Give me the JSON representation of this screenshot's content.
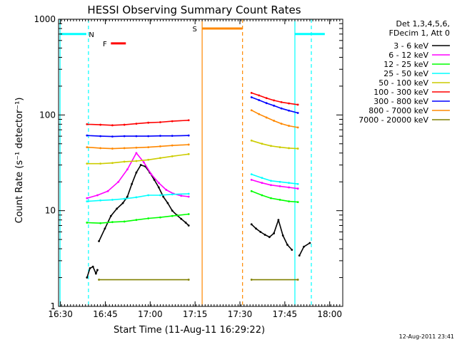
{
  "chart_data": {
    "type": "line",
    "title": "HESSI Observing Summary Count Rates",
    "xlabel": "Start Time (11-Aug-11 16:29:22)",
    "ylabel": "Count Rate (s⁻¹ detector⁻¹)",
    "x_unit": "minutes after 16:29:22",
    "xlim": [
      0,
      95
    ],
    "ylim": [
      1,
      1000
    ],
    "y_scale": "log",
    "grid": false,
    "legend_position": "right",
    "x_ticks": [
      {
        "t": 0.63,
        "label": "16:30"
      },
      {
        "t": 15.63,
        "label": "16:45"
      },
      {
        "t": 30.63,
        "label": "17:00"
      },
      {
        "t": 45.63,
        "label": "17:15"
      },
      {
        "t": 60.63,
        "label": "17:30"
      },
      {
        "t": 75.63,
        "label": "17:45"
      },
      {
        "t": 90.63,
        "label": "18:00"
      }
    ],
    "y_ticks": [
      {
        "v": 1,
        "label": "1"
      },
      {
        "v": 10,
        "label": "10"
      },
      {
        "v": 100,
        "label": "100"
      },
      {
        "v": 1000,
        "label": "1000"
      }
    ],
    "legend_header": [
      "Det 1,3,4,5,6,",
      "FDecim 1, Att 0"
    ],
    "footer_date": "12-Aug-2011 23:41",
    "series": [
      {
        "name": "3 - 6 keV",
        "color": "#000000",
        "segments": [
          {
            "x": [
              9.5,
              10.5,
              11.5,
              12.5,
              13.0
            ],
            "y": [
              2.0,
              2.5,
              2.6,
              2.2,
              2.4
            ]
          },
          {
            "x": [
              13.5,
              15.5,
              17.5,
              19.5,
              21.5,
              23.0,
              24.5,
              26.0,
              27.5,
              29.0,
              30.5,
              32.0,
              33.5,
              35.0,
              36.5,
              38.0,
              39.5,
              41.0,
              42.5,
              43.5
            ],
            "y": [
              4.8,
              6.5,
              8.8,
              10.5,
              12.0,
              14.0,
              19.0,
              25.0,
              30.0,
              29.0,
              25.0,
              21.0,
              17.5,
              14.0,
              12.0,
              10.0,
              9.0,
              8.2,
              7.5,
              7.0
            ]
          },
          {
            "x": [
              64.5,
              66.0,
              67.5,
              69.0,
              70.5,
              72.0,
              73.5,
              75.0,
              76.5,
              78.0
            ],
            "y": [
              7.2,
              6.5,
              6.0,
              5.6,
              5.3,
              5.8,
              8.0,
              5.5,
              4.4,
              3.9
            ]
          },
          {
            "x": [
              80.5,
              82.0,
              84.0
            ],
            "y": [
              3.4,
              4.2,
              4.6
            ]
          }
        ]
      },
      {
        "name": "6 - 12 keV",
        "color": "#ff00ff",
        "segments": [
          {
            "x": [
              9.5,
              13.0,
              16.5,
              20.0,
              23.0,
              26.0,
              28.5,
              31.0,
              33.5,
              36.0,
              38.5,
              41.0,
              43.5
            ],
            "y": [
              13.5,
              14.5,
              16.0,
              20.0,
              27.0,
              40.0,
              32.0,
              24.0,
              19.5,
              16.5,
              15.0,
              14.3,
              14.0
            ]
          },
          {
            "x": [
              64.5,
              68.0,
              71.0,
              74.0,
              77.0,
              80.0
            ],
            "y": [
              21.0,
              19.5,
              18.5,
              18.0,
              17.5,
              17.0
            ]
          }
        ]
      },
      {
        "name": "12 - 25 keV",
        "color": "#00ff00",
        "segments": [
          {
            "x": [
              9.5,
              14.0,
              18.0,
              22.0,
              26.0,
              30.0,
              34.0,
              38.0,
              43.5
            ],
            "y": [
              7.5,
              7.4,
              7.6,
              7.7,
              8.0,
              8.3,
              8.5,
              8.8,
              9.2
            ]
          },
          {
            "x": [
              64.5,
              68.0,
              71.0,
              74.0,
              77.0,
              80.0
            ],
            "y": [
              16.0,
              14.5,
              13.5,
              13.0,
              12.5,
              12.3
            ]
          }
        ]
      },
      {
        "name": "25 - 50 keV",
        "color": "#00ffff",
        "segments": [
          {
            "x": [
              9.5,
              14.0,
              18.0,
              22.0,
              26.0,
              30.0,
              34.0,
              38.0,
              43.5
            ],
            "y": [
              12.5,
              12.8,
              13.0,
              13.3,
              13.8,
              14.5,
              14.5,
              14.8,
              15.0
            ]
          },
          {
            "x": [
              64.5,
              68.0,
              71.0,
              74.0,
              77.0,
              80.0
            ],
            "y": [
              24.0,
              22.0,
              20.5,
              20.0,
              19.5,
              19.0
            ]
          }
        ]
      },
      {
        "name": "50 - 100 keV",
        "color": "#cccc00",
        "segments": [
          {
            "x": [
              9.5,
              14.0,
              18.0,
              22.0,
              26.0,
              30.0,
              34.0,
              38.0,
              43.5
            ],
            "y": [
              31.0,
              31.0,
              31.5,
              32.5,
              33.0,
              34.0,
              35.5,
              37.0,
              39.0
            ]
          },
          {
            "x": [
              64.5,
              68.0,
              71.0,
              74.0,
              77.0,
              80.0
            ],
            "y": [
              54.0,
              50.0,
              47.5,
              46.0,
              45.0,
              44.5
            ]
          }
        ]
      },
      {
        "name": "100 - 300 keV",
        "color": "#ff0000",
        "segments": [
          {
            "x": [
              9.5,
              14.0,
              18.0,
              22.0,
              26.0,
              30.0,
              34.0,
              38.0,
              43.5
            ],
            "y": [
              80.0,
              79.0,
              78.0,
              79.0,
              81.0,
              83.0,
              84.0,
              86.0,
              88.0
            ]
          },
          {
            "x": [
              64.5,
              67.0,
              69.5,
              72.0,
              74.5,
              77.0,
              80.0
            ],
            "y": [
              170.0,
              160.0,
              150.0,
              142.0,
              136.0,
              132.0,
              128.0
            ]
          }
        ]
      },
      {
        "name": "300 - 800 keV",
        "color": "#0000ff",
        "segments": [
          {
            "x": [
              9.5,
              14.0,
              18.0,
              22.0,
              26.0,
              30.0,
              34.0,
              38.0,
              43.5
            ],
            "y": [
              61.0,
              60.0,
              59.5,
              60.0,
              60.0,
              60.0,
              60.5,
              60.5,
              61.0
            ]
          },
          {
            "x": [
              64.5,
              67.0,
              69.5,
              72.0,
              74.5,
              77.0,
              80.0
            ],
            "y": [
              153.0,
              143.0,
              133.0,
              125.0,
              117.0,
              111.0,
              105.0
            ]
          }
        ]
      },
      {
        "name": "800 - 7000 keV",
        "color": "#ff8800",
        "segments": [
          {
            "x": [
              9.5,
              14.0,
              18.0,
              22.0,
              26.0,
              30.0,
              34.0,
              38.0,
              43.5
            ],
            "y": [
              46.0,
              45.0,
              44.5,
              45.0,
              45.5,
              46.0,
              47.0,
              48.0,
              49.0
            ]
          },
          {
            "x": [
              64.5,
              67.0,
              69.5,
              72.0,
              74.5,
              77.0,
              80.0
            ],
            "y": [
              112.0,
              102.0,
              94.0,
              87.0,
              81.0,
              77.0,
              74.0
            ]
          }
        ]
      },
      {
        "name": "7000 - 20000 keV",
        "color": "#808000",
        "segments": [
          {
            "x": [
              13.5,
              43.5
            ],
            "y": [
              1.9,
              1.9
            ]
          },
          {
            "x": [
              64.5,
              80.0
            ],
            "y": [
              1.9,
              1.9
            ]
          }
        ]
      }
    ],
    "markers": [
      {
        "label": "N",
        "color": "#00ffff",
        "label_at": 11.0,
        "dashed_lines_at": [
          10.0,
          84.5
        ],
        "solid_lines_at": [
          0.5,
          79.0
        ],
        "bars": [
          {
            "from": 0.5,
            "to": 9.3,
            "y": 700
          },
          {
            "from": 79.0,
            "to": 89.0,
            "y": 700
          }
        ]
      },
      {
        "label": "F",
        "color": "#ff0000",
        "label_at": 15.5,
        "dashed_lines_at": [],
        "solid_lines_at": [],
        "bars": [
          {
            "from": 17.5,
            "to": 22.5,
            "y": 560
          }
        ]
      },
      {
        "label": "S",
        "color": "#ff8800",
        "label_at": 45.5,
        "dashed_lines_at": [
          61.5
        ],
        "solid_lines_at": [
          48.0
        ],
        "bars": [
          {
            "from": 48.0,
            "to": 61.5,
            "y": 800
          }
        ]
      }
    ]
  }
}
